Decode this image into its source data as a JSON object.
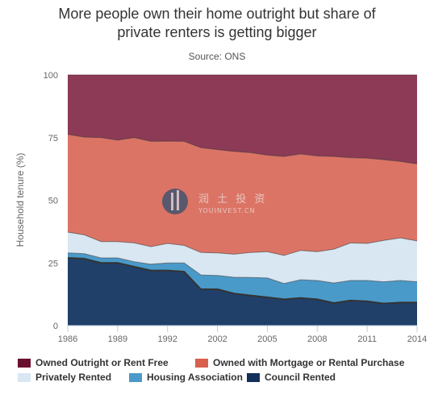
{
  "chart_data": {
    "type": "area",
    "stacked": true,
    "title": "More people own their home outright but share of private renters is getting bigger",
    "title_lines": [
      "More people own their home outright but share of",
      "private renters is getting bigger"
    ],
    "subtitle": "Source: ONS",
    "ylabel": "Household tenure (%)",
    "xlabel": "",
    "ylim": [
      0,
      100
    ],
    "yticks": [
      0,
      25,
      50,
      75,
      100
    ],
    "xtick_labels": [
      "1986",
      "1989",
      "1992",
      "2002",
      "2005",
      "2008",
      "2011",
      "2014"
    ],
    "xtick_positions": [
      0,
      3,
      6,
      9,
      12,
      15,
      18,
      21
    ],
    "x": [
      "1986",
      "1987",
      "1988",
      "1989",
      "1990",
      "1991",
      "1992",
      "1993",
      "2001",
      "2002",
      "2003",
      "2004",
      "2005",
      "2006",
      "2007",
      "2008",
      "2009",
      "2010",
      "2011",
      "2012",
      "2013",
      "2014"
    ],
    "grid": true,
    "legend_position": "bottom",
    "series": [
      {
        "name": "Council Rented",
        "color": "#20406a",
        "values": [
          27.0,
          26.7,
          25.0,
          25.0,
          23.5,
          22.0,
          22.0,
          21.5,
          14.5,
          14.5,
          12.8,
          12.0,
          11.3,
          10.5,
          11.0,
          10.5,
          9.0,
          10.0,
          9.7,
          8.8,
          9.2,
          9.2
        ]
      },
      {
        "name": "Housing Association",
        "color": "#4a9ac9",
        "values": [
          2.0,
          2.0,
          2.0,
          2.0,
          2.0,
          2.5,
          3.0,
          3.5,
          5.7,
          5.5,
          6.5,
          7.2,
          7.7,
          6.3,
          7.3,
          7.5,
          8.0,
          8.0,
          8.3,
          8.7,
          8.8,
          8.3
        ]
      },
      {
        "name": "Privately Rented",
        "color": "#d8e7f2",
        "values": [
          8.3,
          7.5,
          6.5,
          6.5,
          7.5,
          7.0,
          7.8,
          7.0,
          9.0,
          9.0,
          9.2,
          10.0,
          10.5,
          11.2,
          11.7,
          11.5,
          13.5,
          15.0,
          14.8,
          16.5,
          17.0,
          16.3
        ]
      },
      {
        "name": "Owned with Mortgage or Rental Purchase",
        "color": "#dc7466",
        "values": [
          39.0,
          39.0,
          41.5,
          40.5,
          42.0,
          42.0,
          40.8,
          41.5,
          41.8,
          41.2,
          41.0,
          39.8,
          38.5,
          39.5,
          38.5,
          38.2,
          37.0,
          34.0,
          34.0,
          32.2,
          30.5,
          30.7
        ]
      },
      {
        "name": "Owned Outright or Rent Free",
        "color": "#8c3a55",
        "values": [
          23.7,
          24.8,
          25.0,
          26.0,
          25.0,
          26.5,
          26.4,
          26.5,
          29.0,
          29.8,
          30.5,
          31.0,
          32.0,
          32.5,
          31.5,
          32.3,
          32.5,
          33.0,
          33.2,
          33.8,
          34.5,
          35.5
        ]
      }
    ],
    "colors": {
      "axis": "#c0d0e0",
      "grid": "#e6e6e6",
      "tick_text": "#666666",
      "outline": "#333333"
    }
  },
  "legend": {
    "items": [
      {
        "label": "Owned Outright or Rent Free",
        "color": "#6b0f2e"
      },
      {
        "label": "Owned with Mortgage or Rental Purchase",
        "color": "#d9604f"
      },
      {
        "label": "Privately Rented",
        "color": "#d8e7f2"
      },
      {
        "label": "Housing Association",
        "color": "#4a9ac9"
      },
      {
        "label": "Council Rented",
        "color": "#13305a"
      }
    ]
  },
  "watermark": {
    "text": "润 土 投 资",
    "subtext": "YOUINVEST.CN"
  }
}
